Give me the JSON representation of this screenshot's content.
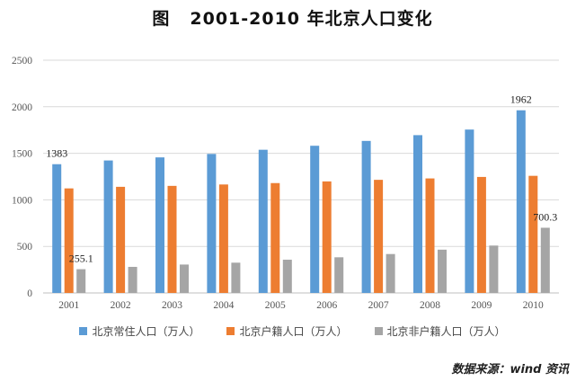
{
  "header": {
    "figure_label": "图",
    "title": "2001-2010 年北京人口变化"
  },
  "chart_data": {
    "type": "bar",
    "title": "2001-2010 年北京人口变化",
    "categories": [
      "2001",
      "2002",
      "2003",
      "2004",
      "2005",
      "2006",
      "2007",
      "2008",
      "2009",
      "2010"
    ],
    "ylim": [
      0,
      2500
    ],
    "yticks": [
      0,
      500,
      1000,
      1500,
      2000,
      2500
    ],
    "grid": true,
    "legend_position": "bottom",
    "series": [
      {
        "name": "北京常住人口（万人）",
        "color": "#5b9bd5",
        "values": [
          1383,
          1423,
          1456,
          1493,
          1538,
          1581,
          1633,
          1695,
          1755,
          1962
        ]
      },
      {
        "name": "北京户籍人口（万人）",
        "color": "#ed7d31",
        "values": [
          1123,
          1140,
          1150,
          1165,
          1180,
          1198,
          1215,
          1230,
          1246,
          1258
        ]
      },
      {
        "name": "北京非户籍人口（万人）",
        "color": "#a5a5a5",
        "values": [
          255.1,
          280,
          305,
          325,
          357,
          383,
          418,
          465,
          509,
          700.3
        ]
      }
    ],
    "data_labels": [
      {
        "series": 0,
        "index": 0,
        "text": "1383"
      },
      {
        "series": 2,
        "index": 0,
        "text": "255.1"
      },
      {
        "series": 0,
        "index": 9,
        "text": "1962"
      },
      {
        "series": 2,
        "index": 9,
        "text": "700.3"
      }
    ]
  },
  "source": {
    "text": "数据来源：wind 资讯"
  }
}
